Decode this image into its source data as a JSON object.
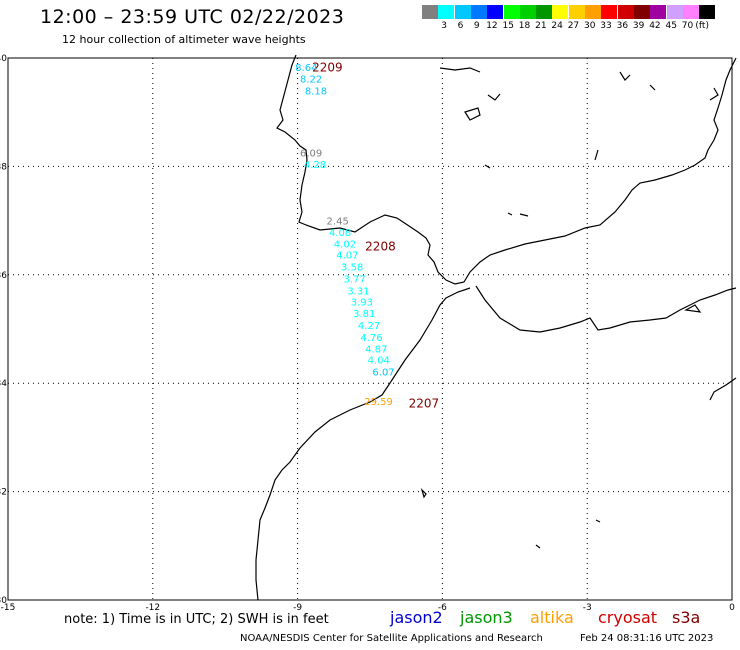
{
  "header": {
    "title": "12:00 – 23:59 UTC 02/22/2023",
    "subtitle": "12 hour collection of altimeter wave heights"
  },
  "legend": {
    "unit": "(ft)",
    "items": [
      {
        "label": "",
        "color": "#808080"
      },
      {
        "label": "3",
        "color": "#00ffff"
      },
      {
        "label": "6",
        "color": "#00c8ff"
      },
      {
        "label": "9",
        "color": "#0078ff"
      },
      {
        "label": "12",
        "color": "#0000ff"
      },
      {
        "label": "15",
        "color": "#00ff00"
      },
      {
        "label": "18",
        "color": "#00d000"
      },
      {
        "label": "21",
        "color": "#009600"
      },
      {
        "label": "24",
        "color": "#ffff00"
      },
      {
        "label": "27",
        "color": "#ffd000"
      },
      {
        "label": "30",
        "color": "#ffa000"
      },
      {
        "label": "33",
        "color": "#ff0000"
      },
      {
        "label": "36",
        "color": "#d00000"
      },
      {
        "label": "39",
        "color": "#800000"
      },
      {
        "label": "42",
        "color": "#a000a0"
      },
      {
        "label": "45",
        "color": "#d0a0ff"
      },
      {
        "label": "70",
        "color": "#ff80ff"
      },
      {
        "label": "",
        "color": "#000000"
      }
    ]
  },
  "map": {
    "lon_range": [
      -15,
      0
    ],
    "lat_range": [
      30,
      40
    ],
    "x_ticks": [
      {
        "value": -15,
        "label": "-15"
      },
      {
        "value": -12,
        "label": "-12"
      },
      {
        "value": -9,
        "label": "-9"
      },
      {
        "value": -6,
        "label": "-6"
      },
      {
        "value": -3,
        "label": "-3"
      },
      {
        "value": 0,
        "label": "0"
      }
    ],
    "y_ticks": [
      {
        "value": 30,
        "label": "30"
      },
      {
        "value": 32,
        "label": "32"
      },
      {
        "value": 34,
        "label": "34"
      },
      {
        "value": 36,
        "label": "36"
      },
      {
        "value": 38,
        "label": "38"
      },
      {
        "value": 40,
        "label": "40"
      }
    ],
    "passes": [
      {
        "label": "2209",
        "lon": -8.7,
        "lat": 39.75
      },
      {
        "label": "2208",
        "lon": -7.6,
        "lat": 36.45
      },
      {
        "label": "2207",
        "lon": -6.7,
        "lat": 33.55
      }
    ],
    "observations": [
      {
        "value": "8.64",
        "lon": -9.05,
        "lat": 39.76,
        "color": "#00c8ff"
      },
      {
        "value": "8.22",
        "lon": -8.95,
        "lat": 39.55,
        "color": "#00c8ff"
      },
      {
        "value": "8.18",
        "lon": -8.85,
        "lat": 39.33,
        "color": "#00c8ff"
      },
      {
        "value": "6.09",
        "lon": -8.95,
        "lat": 38.18,
        "color": "#808080"
      },
      {
        "value": "4.28",
        "lon": -8.87,
        "lat": 37.97,
        "color": "#00ffff"
      },
      {
        "value": "2.45",
        "lon": -8.4,
        "lat": 36.93,
        "color": "#808080"
      },
      {
        "value": "4.08",
        "lon": -8.35,
        "lat": 36.72,
        "color": "#00ffff"
      },
      {
        "value": "4.02",
        "lon": -8.25,
        "lat": 36.5,
        "color": "#00ffff"
      },
      {
        "value": "4.07",
        "lon": -8.2,
        "lat": 36.3,
        "color": "#00ffff"
      },
      {
        "value": "3.58",
        "lon": -8.1,
        "lat": 36.08,
        "color": "#00ffff"
      },
      {
        "value": "3.77",
        "lon": -8.05,
        "lat": 35.86,
        "color": "#00ffff"
      },
      {
        "value": "3.31",
        "lon": -7.97,
        "lat": 35.64,
        "color": "#00ffff"
      },
      {
        "value": "3.93",
        "lon": -7.9,
        "lat": 35.43,
        "color": "#00ffff"
      },
      {
        "value": "3.81",
        "lon": -7.85,
        "lat": 35.22,
        "color": "#00ffff"
      },
      {
        "value": "4.27",
        "lon": -7.75,
        "lat": 35.0,
        "color": "#00ffff"
      },
      {
        "value": "4.76",
        "lon": -7.7,
        "lat": 34.78,
        "color": "#00ffff"
      },
      {
        "value": "4.87",
        "lon": -7.6,
        "lat": 34.57,
        "color": "#00ffff"
      },
      {
        "value": "4.04",
        "lon": -7.55,
        "lat": 34.36,
        "color": "#00ffff"
      },
      {
        "value": "6.07",
        "lon": -7.45,
        "lat": 34.14,
        "color": "#00c8ff"
      },
      {
        "value": "29.59",
        "lon": -7.62,
        "lat": 33.6,
        "color": "#ffa000"
      }
    ]
  },
  "footer": {
    "note": "note:  1) Time is in UTC;  2) SWH is in feet",
    "satellites": [
      {
        "name": "jason2",
        "color": "#0000d0"
      },
      {
        "name": "jason3",
        "color": "#009600"
      },
      {
        "name": "altika",
        "color": "#ffa000"
      },
      {
        "name": "cryosat",
        "color": "#d00000"
      },
      {
        "name": "s3a",
        "color": "#800000"
      }
    ],
    "credit": "NOAA/NESDIS Center for Satellite Applications and Research",
    "timestamp": "Feb 24 08:31:16 UTC 2023"
  }
}
